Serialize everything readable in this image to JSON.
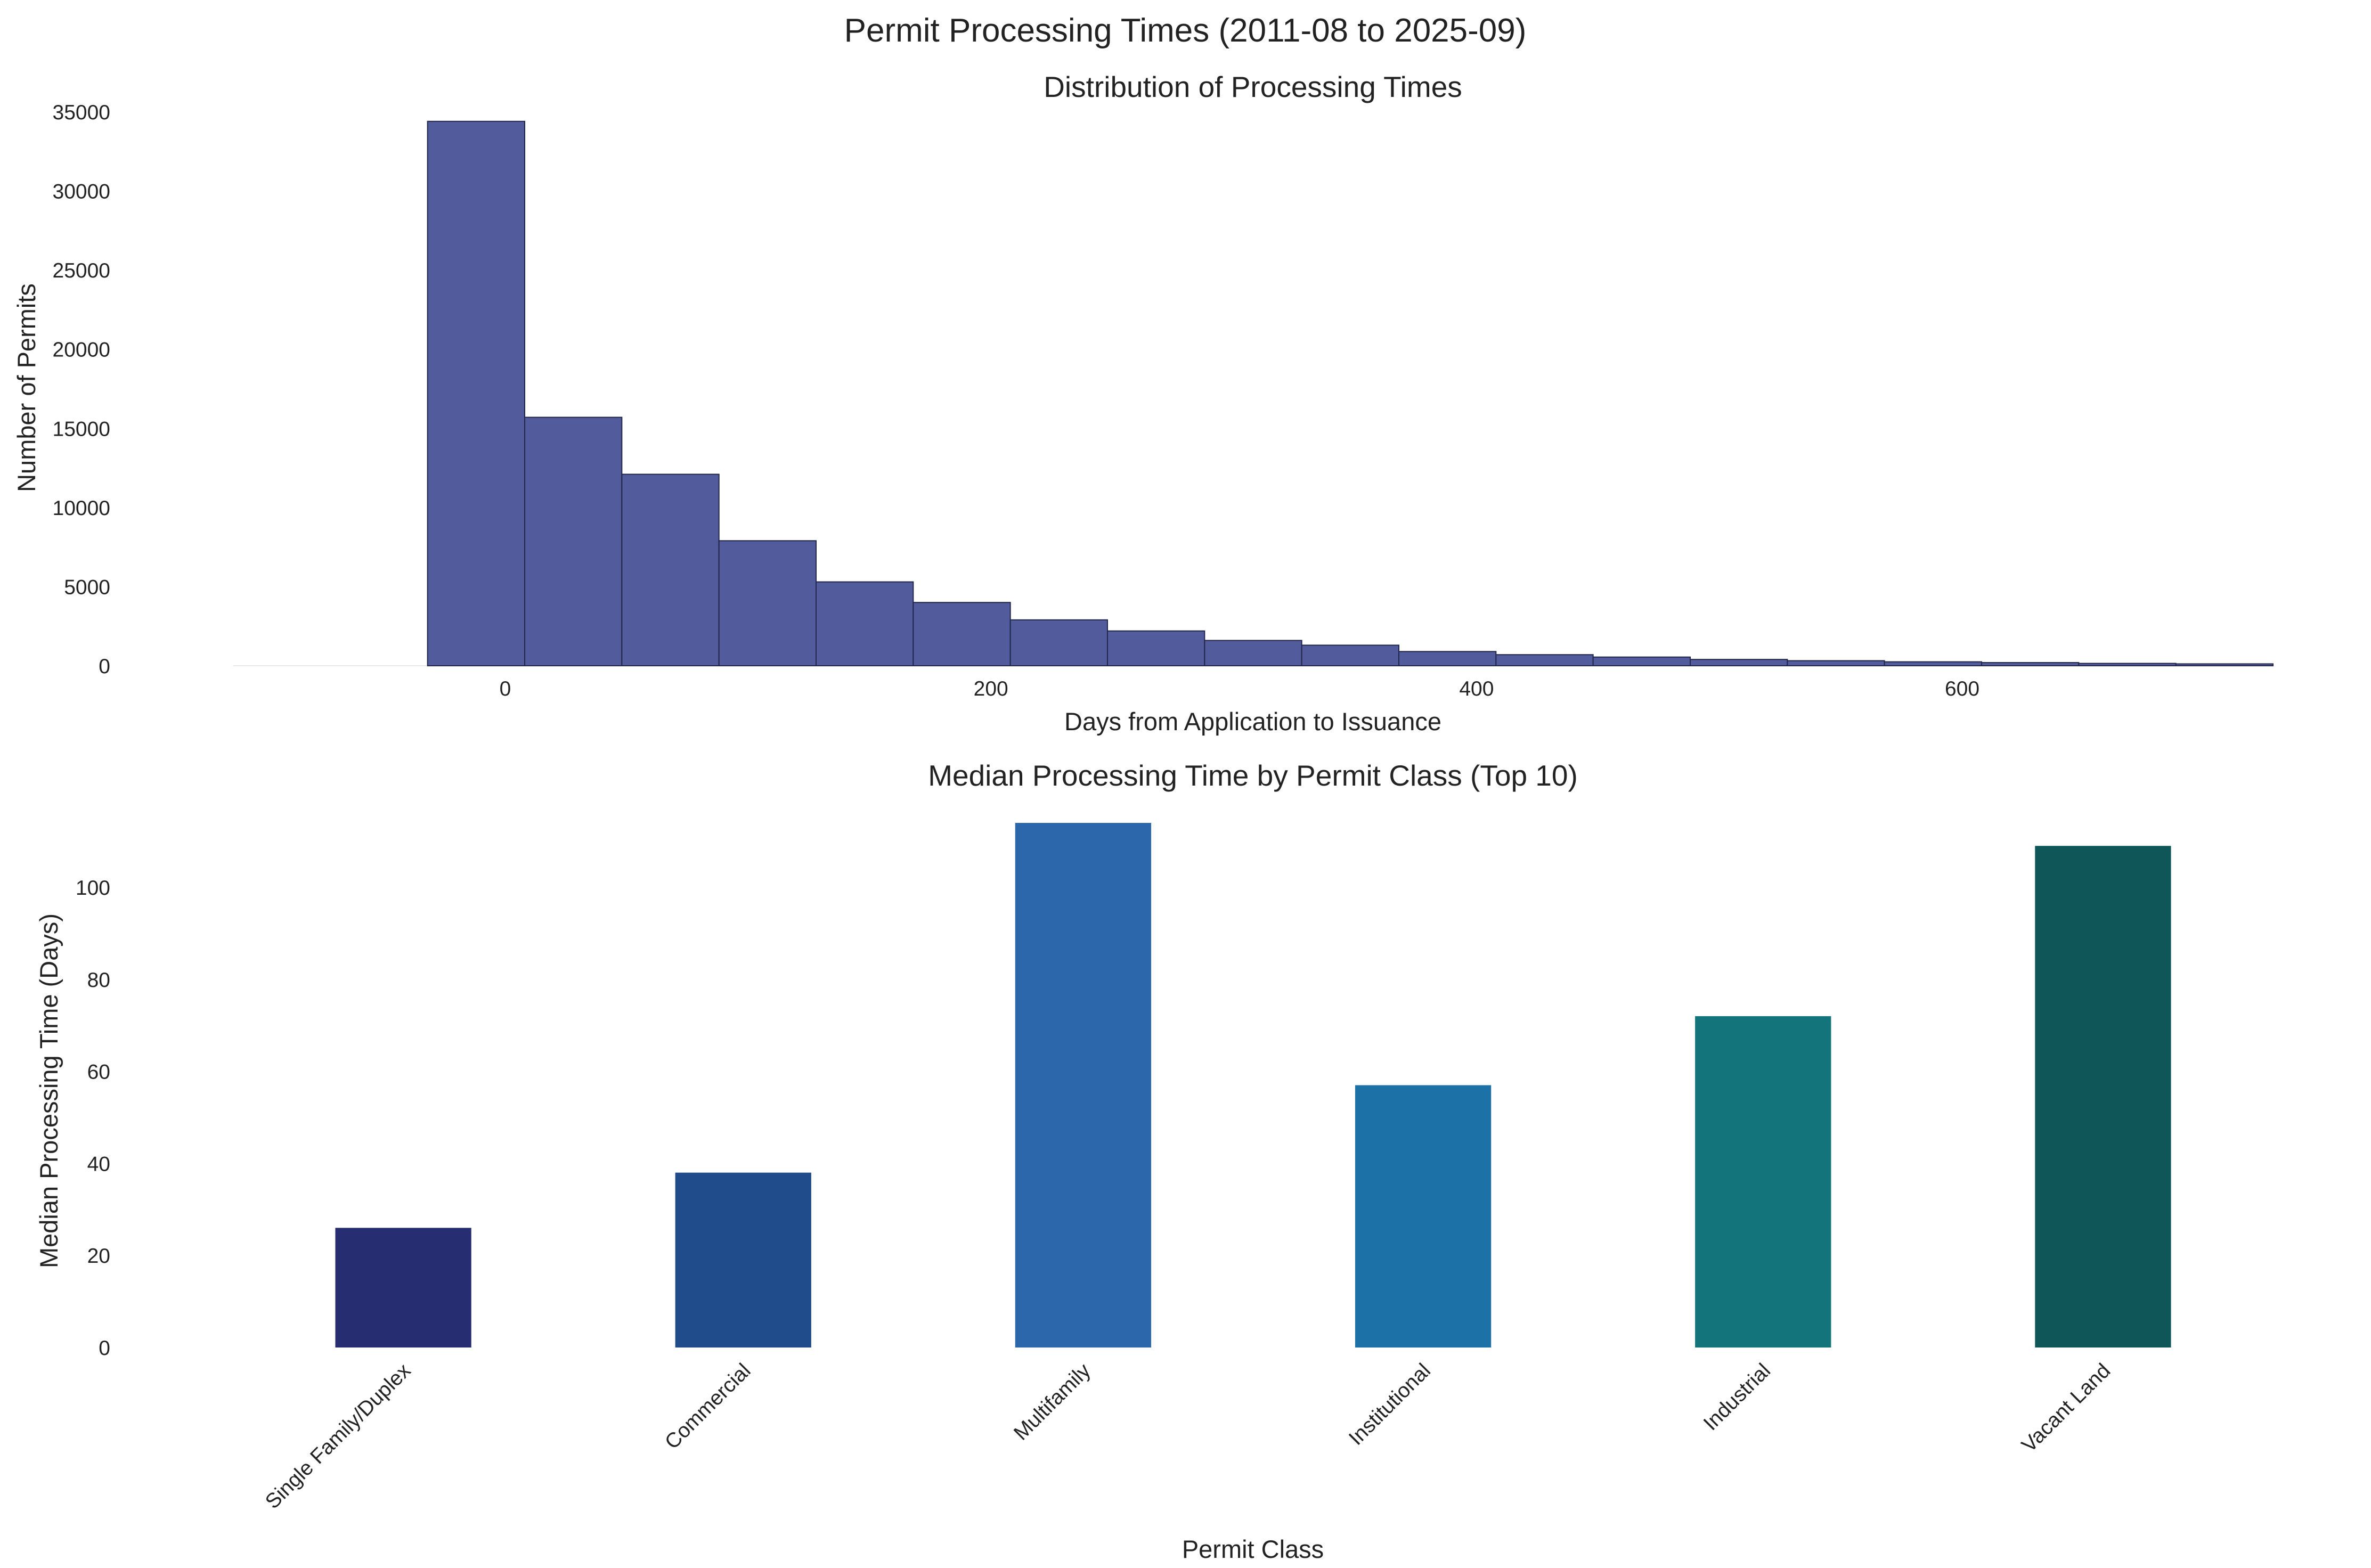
{
  "figure": {
    "suptitle": "Permit Processing Times (2011-08 to 2025-09)"
  },
  "chart_data": [
    {
      "type": "bar",
      "subtype": "histogram",
      "title": "Distribution of Processing Times",
      "xlabel": "Days from Application to Issuance",
      "ylabel": "Number of Permits",
      "xlim": [
        -112,
        728
      ],
      "ylim": [
        0,
        35000
      ],
      "xticks": [
        0,
        200,
        400,
        600
      ],
      "yticks": [
        0,
        5000,
        10000,
        15000,
        20000,
        25000,
        30000,
        35000
      ],
      "grid": false,
      "bin_width": 40,
      "bins_start": [
        -32,
        8,
        48,
        88,
        128,
        168,
        208,
        248,
        288,
        328,
        368,
        408,
        448,
        488,
        528,
        568,
        608,
        648,
        688
      ],
      "values": [
        34400,
        15700,
        12100,
        7900,
        5300,
        4000,
        2900,
        2200,
        1600,
        1300,
        900,
        700,
        550,
        400,
        320,
        250,
        200,
        150,
        120
      ],
      "colors": {
        "bar": "#525b9c",
        "edge": "#22264a"
      }
    },
    {
      "type": "bar",
      "title": "Median Processing Time by Permit Class (Top 10)",
      "xlabel": "Permit Class",
      "ylabel": "Median Processing Time (Days)",
      "ylim": [
        0,
        114
      ],
      "yticks": [
        0,
        20,
        40,
        60,
        80,
        100
      ],
      "grid": false,
      "categories": [
        "Single Family/Duplex",
        "Commercial",
        "Multifamily",
        "Institutional",
        "Industrial",
        "Vacant Land"
      ],
      "values": [
        26,
        38,
        114,
        57,
        72,
        109
      ],
      "colors": [
        "#262d71",
        "#214c8c",
        "#2b67aa",
        "#1c71a6",
        "#14747c",
        "#0f5659"
      ]
    }
  ]
}
